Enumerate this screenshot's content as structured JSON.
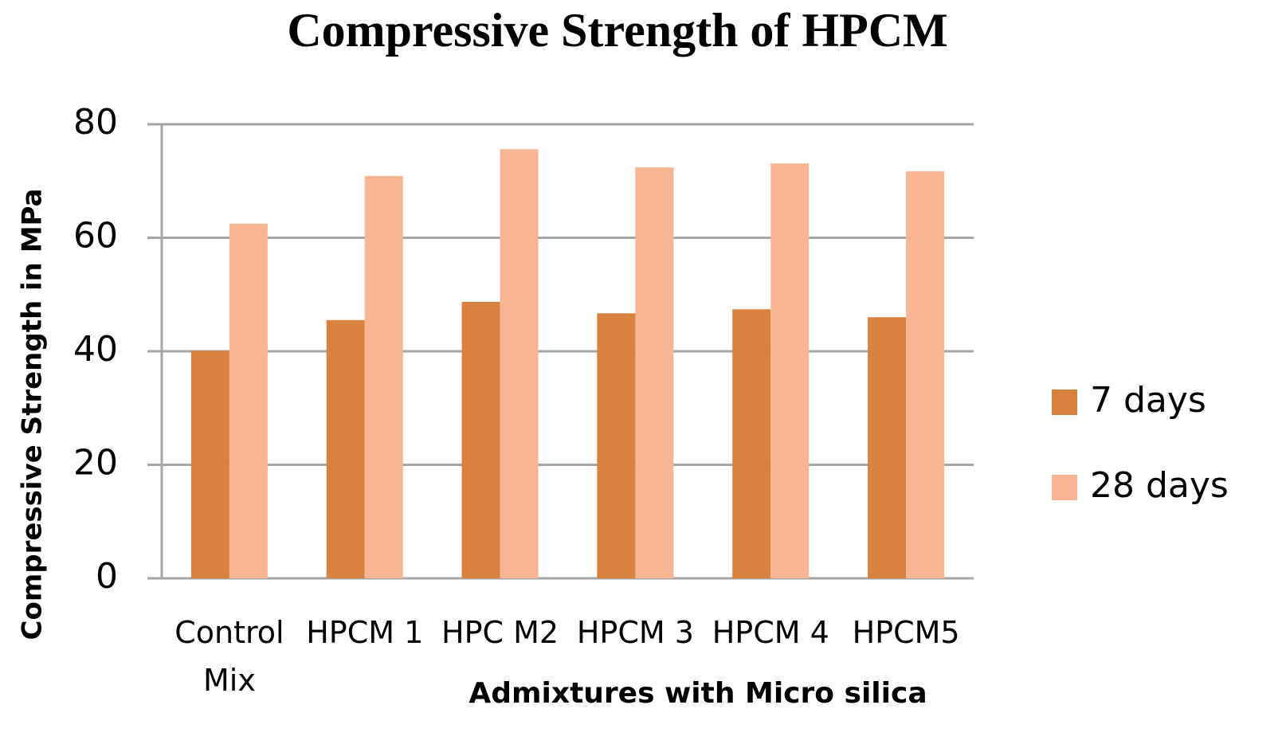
{
  "chart_data": {
    "type": "bar",
    "title": "Compressive Strength of HPCM",
    "x_label": "Admixtures with Micro silica",
    "y_label": "Compressive Strength in MPa",
    "categories": [
      "Control Mix",
      "HPCM 1",
      "HPC M2",
      "HPCM 3",
      "HPCM 4",
      "HPCM5"
    ],
    "series": [
      {
        "name": "7 days",
        "color": "#d9823f",
        "values": [
          40.1,
          45.5,
          48.7,
          46.7,
          47.4,
          46.0
        ]
      },
      {
        "name": "28 days",
        "color": "#f8b593",
        "values": [
          62.5,
          70.9,
          75.6,
          72.4,
          73.1,
          71.7
        ]
      }
    ],
    "ylim": [
      0,
      80
    ],
    "yticks": [
      0,
      20,
      40,
      60,
      80
    ],
    "grid": true,
    "legend": "right"
  }
}
